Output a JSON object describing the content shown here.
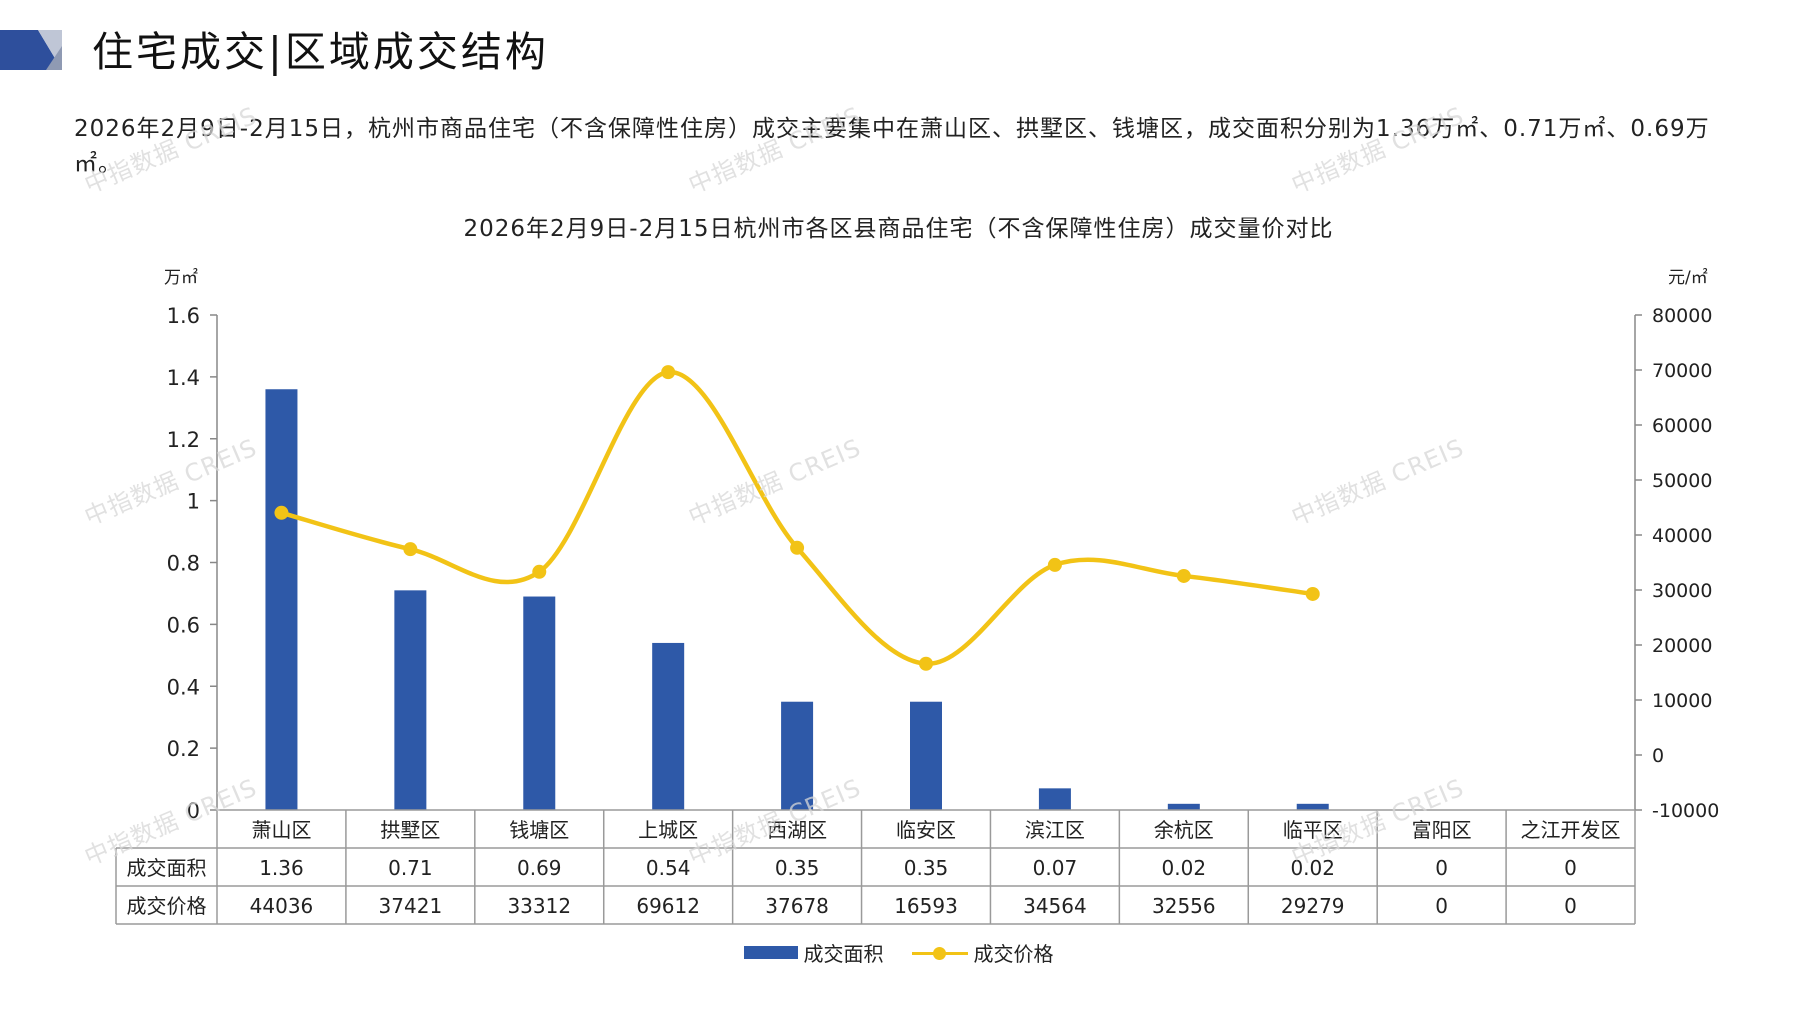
{
  "header": {
    "title": "住宅成交|区域成交结构"
  },
  "summary": "2026年2月9日-2月15日，杭州市商品住宅（不含保障性住房）成交主要集中在萧山区、拱墅区、钱塘区，成交面积分别为1.36万㎡、0.71万㎡、0.69万㎡。",
  "watermark": "中指数据 CREIS",
  "colors": {
    "bar": "#2e59a8",
    "line": "#f2c316",
    "axis": "#888888"
  },
  "chart_data": {
    "type": "bar",
    "title": "2026年2月9日-2月15日杭州市各区县商品住宅（不含保障性住房）成交量价对比",
    "categories": [
      "萧山区",
      "拱墅区",
      "钱塘区",
      "上城区",
      "西湖区",
      "临安区",
      "滨江区",
      "余杭区",
      "临平区",
      "富阳区",
      "之江开发区"
    ],
    "y_left": {
      "unit": "万㎡",
      "ylim": [
        0,
        1.6
      ],
      "ticks": [
        "1.6",
        "1.4",
        "1.2",
        "1",
        "0.8",
        "0.6",
        "0.4",
        "0.2",
        "0"
      ]
    },
    "y_right": {
      "unit": "元/㎡",
      "ylim": [
        -10000,
        80000
      ],
      "ticks": [
        "80000",
        "70000",
        "60000",
        "50000",
        "40000",
        "30000",
        "20000",
        "10000",
        "0",
        "-10000"
      ]
    },
    "series": [
      {
        "name": "成交面积",
        "type": "bar",
        "axis": "left",
        "values": [
          1.36,
          0.71,
          0.69,
          0.54,
          0.35,
          0.35,
          0.07,
          0.02,
          0.02,
          0,
          0
        ],
        "labels": [
          "1.36",
          "0.71",
          "0.69",
          "0.54",
          "0.35",
          "0.35",
          "0.07",
          "0.02",
          "0.02",
          "0",
          "0"
        ]
      },
      {
        "name": "成交价格",
        "type": "line",
        "smooth": true,
        "axis": "right",
        "values": [
          44036,
          37421,
          33312,
          69612,
          37678,
          16593,
          34564,
          32556,
          29279,
          null,
          null
        ],
        "labels": [
          "44036",
          "37421",
          "33312",
          "69612",
          "37678",
          "16593",
          "34564",
          "32556",
          "29279",
          "0",
          "0"
        ]
      }
    ],
    "legend_position": "bottom",
    "data_table": true
  }
}
